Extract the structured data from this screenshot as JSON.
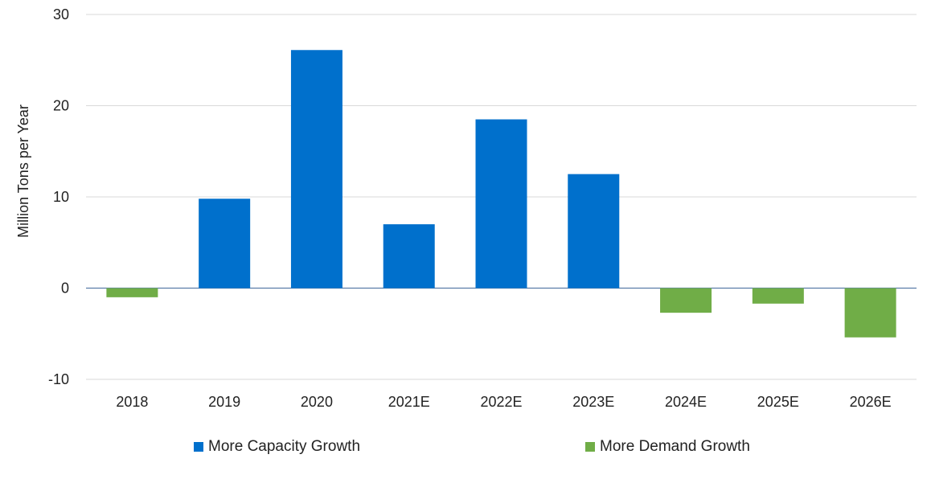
{
  "chart_data": {
    "type": "bar",
    "title": "",
    "xlabel": "",
    "ylabel": "Million Tons per Year",
    "ylim": [
      -10,
      30
    ],
    "yticks": [
      -10,
      0,
      10,
      20,
      30
    ],
    "grid": true,
    "categories": [
      "2018",
      "2019",
      "2020",
      "2021E",
      "2022E",
      "2023E",
      "2024E",
      "2025E",
      "2026E"
    ],
    "values": [
      -1.0,
      9.8,
      26.1,
      7.0,
      18.5,
      12.5,
      -2.7,
      -1.7,
      -5.4
    ],
    "series": [
      {
        "name": "More Capacity Growth",
        "color": "#0070cc",
        "values": [
          null,
          9.8,
          26.1,
          7.0,
          18.5,
          12.5,
          null,
          null,
          null
        ]
      },
      {
        "name": "More Demand Growth",
        "color": "#70ad47",
        "values": [
          -1.0,
          null,
          null,
          null,
          null,
          null,
          -2.7,
          -1.7,
          -5.4
        ]
      }
    ],
    "legend_position": "bottom"
  }
}
